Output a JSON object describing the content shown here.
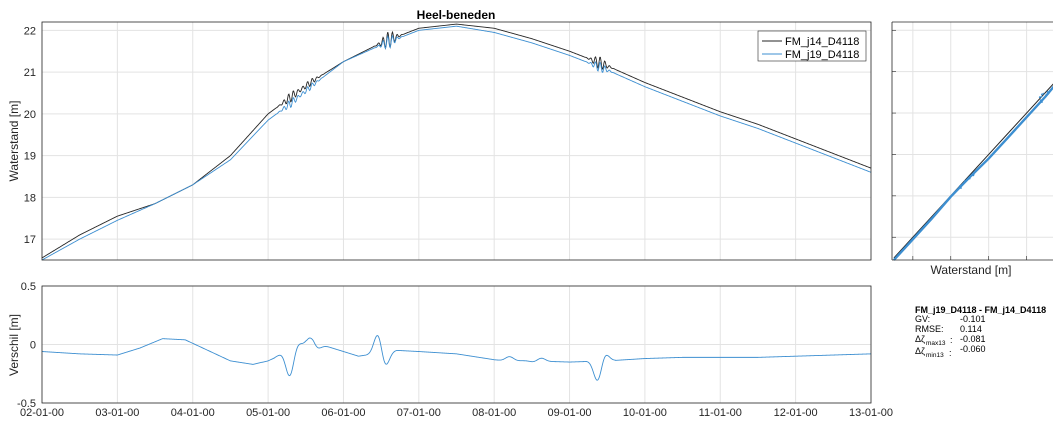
{
  "chart_data": [
    {
      "type": "line",
      "title": "Heel-beneden",
      "xlabel": "",
      "ylabel": "Waterstand [m]",
      "x_tick_labels": [
        "02-01-00",
        "03-01-00",
        "04-01-00",
        "05-01-00",
        "06-01-00",
        "07-01-00",
        "08-01-00",
        "09-01-00",
        "10-01-00",
        "11-01-00",
        "12-01-00",
        "13-01-00"
      ],
      "xlim": [
        0,
        11
      ],
      "ylim": [
        16.5,
        22.2
      ],
      "y_ticks": [
        17,
        18,
        19,
        20,
        21,
        22
      ],
      "grid": true,
      "legend_position": "top-right",
      "series": [
        {
          "name": "FM_j14_D4118",
          "color": "#262626",
          "x": [
            0,
            0.5,
            1.0,
            1.5,
            2.0,
            2.5,
            3.0,
            3.3,
            3.6,
            4.0,
            4.5,
            5.0,
            5.5,
            6.0,
            6.5,
            7.0,
            7.5,
            8.0,
            8.5,
            9.0,
            9.5,
            10.0,
            10.5,
            11.0
          ],
          "y": [
            16.55,
            17.1,
            17.55,
            17.85,
            18.3,
            19.0,
            20.0,
            20.4,
            20.8,
            21.25,
            21.7,
            22.05,
            22.15,
            22.05,
            21.8,
            21.5,
            21.15,
            20.75,
            20.4,
            20.05,
            19.75,
            19.4,
            19.05,
            18.7
          ],
          "noise": [
            {
              "x": 3.3,
              "amp": 0.12
            },
            {
              "x": 3.55,
              "amp": 0.08
            },
            {
              "x": 4.6,
              "amp": 0.2
            },
            {
              "x": 7.4,
              "amp": 0.15
            }
          ]
        },
        {
          "name": "FM_j19_D4118",
          "color": "#3d8fd1",
          "x": [
            0,
            0.5,
            1.0,
            1.5,
            2.0,
            2.5,
            3.0,
            3.3,
            3.6,
            4.0,
            4.5,
            5.0,
            5.5,
            6.0,
            6.5,
            7.0,
            7.5,
            8.0,
            8.5,
            9.0,
            9.5,
            10.0,
            10.5,
            11.0
          ],
          "y": [
            16.5,
            17.0,
            17.45,
            17.85,
            18.3,
            18.9,
            19.85,
            20.25,
            20.7,
            21.25,
            21.65,
            22.0,
            22.1,
            21.95,
            21.7,
            21.4,
            21.05,
            20.65,
            20.3,
            19.95,
            19.65,
            19.3,
            18.95,
            18.6
          ],
          "noise": [
            {
              "x": 3.3,
              "amp": 0.1
            },
            {
              "x": 3.55,
              "amp": 0.07
            },
            {
              "x": 4.6,
              "amp": 0.15
            },
            {
              "x": 7.4,
              "amp": 0.12
            }
          ]
        }
      ]
    },
    {
      "type": "line",
      "title": "",
      "xlabel": "",
      "ylabel": "Verschil [m]",
      "x_tick_labels": [
        "02-01-00",
        "03-01-00",
        "04-01-00",
        "05-01-00",
        "06-01-00",
        "07-01-00",
        "08-01-00",
        "09-01-00",
        "10-01-00",
        "11-01-00",
        "12-01-00",
        "13-01-00"
      ],
      "xlim": [
        0,
        11
      ],
      "ylim": [
        -0.5,
        0.5
      ],
      "y_ticks": [
        -0.5,
        0,
        0.5
      ],
      "grid": true,
      "series": [
        {
          "name": "FM_j19_D4118 - FM_j14_D4118",
          "color": "#3d8fd1",
          "x": [
            0,
            0.5,
            1.0,
            1.3,
            1.6,
            1.9,
            2.2,
            2.5,
            2.8,
            3.0,
            3.3,
            3.6,
            3.9,
            4.2,
            4.5,
            4.7,
            5.0,
            5.5,
            6.0,
            6.5,
            7.0,
            7.5,
            8.0,
            8.5,
            9.0,
            9.5,
            10.0,
            10.5,
            11.0
          ],
          "y": [
            -0.06,
            -0.08,
            -0.09,
            -0.03,
            0.05,
            0.04,
            -0.05,
            -0.14,
            -0.17,
            -0.14,
            -0.05,
            0.02,
            -0.04,
            -0.1,
            -0.07,
            -0.05,
            -0.06,
            -0.08,
            -0.13,
            -0.14,
            -0.15,
            -0.14,
            -0.12,
            -0.11,
            -0.11,
            -0.11,
            -0.1,
            -0.09,
            -0.08
          ],
          "noise": [
            {
              "x": 3.3,
              "amp": 0.22
            },
            {
              "x": 3.6,
              "amp": 0.08
            },
            {
              "x": 4.5,
              "amp": 0.25
            },
            {
              "x": 6.2,
              "amp": 0.03
            },
            {
              "x": 6.6,
              "amp": 0.03
            },
            {
              "x": 7.4,
              "amp": 0.2
            }
          ]
        }
      ]
    },
    {
      "type": "scatter",
      "title": "",
      "xlabel": "Waterstand [m]",
      "ylabel": "",
      "grid": true,
      "series": [
        {
          "name": "FM_j14_D4118",
          "color": "#262626",
          "x": [
            16.5,
            17.0,
            17.5,
            18.0,
            18.5,
            19.0,
            19.5,
            20.0,
            20.5,
            21.0,
            21.5,
            22.0
          ],
          "y": [
            16.5,
            17.0,
            17.5,
            18.0,
            18.5,
            19.0,
            19.5,
            20.0,
            20.5,
            21.0,
            21.5,
            22.0
          ]
        },
        {
          "name": "FM_j19_D4118",
          "color": "#3d8fd1",
          "x": [
            16.5,
            17.0,
            17.5,
            18.0,
            18.5,
            19.0,
            19.5,
            20.0,
            20.5,
            21.0,
            21.5,
            22.0
          ],
          "y": [
            16.45,
            16.95,
            17.45,
            17.98,
            18.45,
            18.9,
            19.4,
            19.9,
            20.4,
            20.95,
            21.45,
            21.95
          ]
        }
      ]
    }
  ],
  "stats": {
    "title": "FM_j19_D4118 - FM_j14_D4118",
    "rows": [
      {
        "label": "GV:",
        "sub": "",
        "value": "-0.101"
      },
      {
        "label": "RMSE:",
        "sub": "",
        "value": "0.114"
      },
      {
        "label": "Δζ",
        "sub": "max13",
        "value": "-0.081"
      },
      {
        "label": "Δζ",
        "sub": "min13",
        "value": "-0.060"
      }
    ]
  }
}
